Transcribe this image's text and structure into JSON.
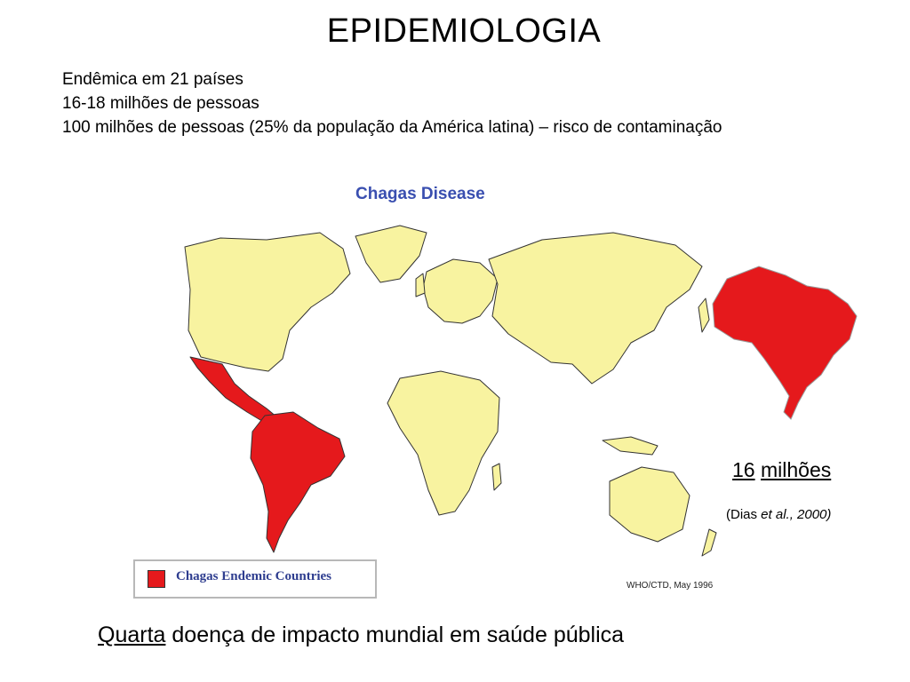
{
  "slide": {
    "title": "EPIDEMIOLOGIA",
    "bullets": [
      "Endêmica em 21 países",
      "16-18 milhões de pessoas",
      "100 milhões de pessoas (25% da população da América latina) – risco de contaminação"
    ]
  },
  "map": {
    "title": "Chagas Disease",
    "legend_label": "Chagas Endemic Countries",
    "credit": "WHO/CTD,  May 1996",
    "colors": {
      "endemic": "#e5191c",
      "land": "#f8f3a0",
      "border": "#333333",
      "title": "#3a4fb0"
    }
  },
  "callout": {
    "count_number": "16",
    "count_unit": "milhões",
    "citation_prefix": "(Dias ",
    "citation_italic": "et al., 2000)"
  },
  "footer": {
    "underlined": "Quarta",
    "rest": " doença de impacto mundial em saúde pública"
  }
}
